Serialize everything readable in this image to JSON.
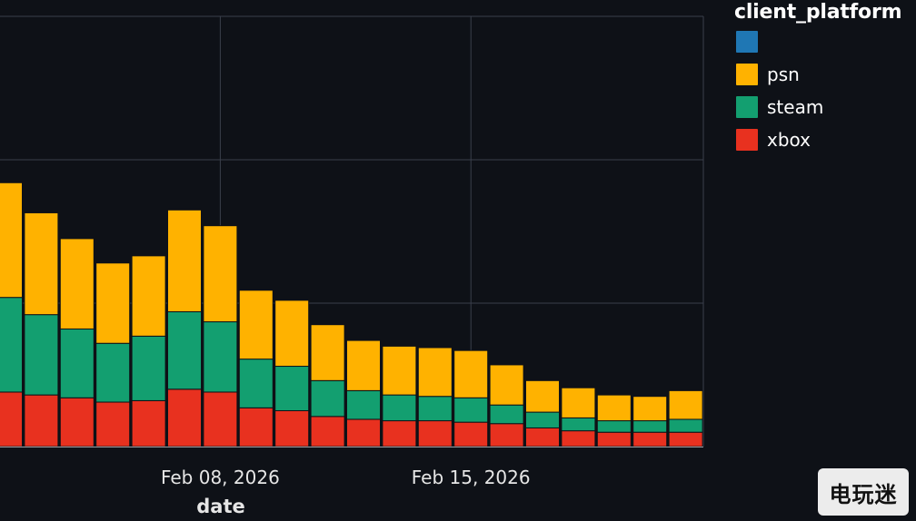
{
  "chart_data": {
    "type": "bar",
    "stacked": true,
    "xlabel": "date",
    "x_tick_labels": [
      "2026",
      "Feb 08, 2026",
      "Feb 15, 2026"
    ],
    "legend": {
      "title": "client_platform",
      "placement": "right"
    },
    "grid": true,
    "categories": [
      "2026-02-02",
      "2026-02-03",
      "2026-02-04",
      "2026-02-05",
      "2026-02-06",
      "2026-02-07",
      "2026-02-08",
      "2026-02-09",
      "2026-02-10",
      "2026-02-11",
      "2026-02-12",
      "2026-02-13",
      "2026-02-14",
      "2026-02-15",
      "2026-02-16",
      "2026-02-17",
      "2026-02-18",
      "2026-02-19",
      "2026-02-20",
      "2026-02-21"
    ],
    "series": [
      {
        "name": "",
        "color": "#1f77b4",
        "values": [
          0,
          0,
          0,
          0,
          0,
          0,
          0,
          0,
          0,
          0,
          0,
          0,
          0,
          0,
          0,
          0,
          0,
          0,
          0,
          0
        ]
      },
      {
        "name": "xbox",
        "color": "#e8311f",
        "values": [
          38,
          36,
          34,
          31,
          32,
          40,
          38,
          27,
          25,
          21,
          19,
          18,
          18,
          17,
          16,
          13,
          11,
          10,
          10,
          10
        ]
      },
      {
        "name": "steam",
        "color": "#139f70",
        "values": [
          66,
          56,
          48,
          41,
          45,
          54,
          49,
          34,
          31,
          25,
          20,
          18,
          17,
          17,
          13,
          11,
          9,
          8,
          8,
          9
        ]
      },
      {
        "name": "psn",
        "color": "#ffb200",
        "values": [
          80,
          71,
          63,
          56,
          56,
          71,
          67,
          48,
          46,
          39,
          35,
          34,
          34,
          33,
          28,
          22,
          21,
          18,
          17,
          20
        ]
      }
    ]
  },
  "watermark": {
    "text": "电玩迷"
  }
}
